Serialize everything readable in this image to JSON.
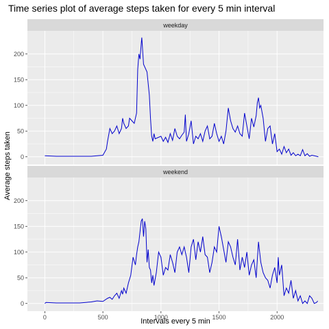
{
  "chart_data": {
    "type": "line",
    "title": "Time series plot of average steps taken for every 5 min interval",
    "xlabel": "Intervals every 5 min",
    "ylabel": "Average steps taken",
    "xlim": [
      -150,
      2400
    ],
    "ylim": [
      -15,
      245
    ],
    "x_ticks": [
      0,
      500,
      1000,
      1500,
      2000
    ],
    "y_ticks": [
      0,
      50,
      100,
      150,
      200
    ],
    "grid": true,
    "line_color": "#0000cc",
    "panel_background": "#ebebeb",
    "strip_background": "#d9d9d9",
    "panels": [
      {
        "label": "weekday",
        "x": [
          0,
          100,
          200,
          300,
          400,
          500,
          530,
          540,
          560,
          580,
          600,
          620,
          640,
          660,
          670,
          680,
          700,
          720,
          730,
          750,
          770,
          790,
          800,
          810,
          820,
          830,
          835,
          840,
          850,
          860,
          870,
          880,
          900,
          910,
          920,
          930,
          940,
          950,
          1000,
          1020,
          1040,
          1060,
          1080,
          1100,
          1120,
          1140,
          1160,
          1180,
          1200,
          1210,
          1220,
          1240,
          1260,
          1280,
          1300,
          1320,
          1340,
          1360,
          1380,
          1400,
          1420,
          1440,
          1460,
          1480,
          1500,
          1520,
          1540,
          1560,
          1580,
          1600,
          1620,
          1640,
          1660,
          1680,
          1700,
          1720,
          1740,
          1760,
          1780,
          1800,
          1820,
          1830,
          1840,
          1850,
          1860,
          1880,
          1900,
          1920,
          1940,
          1960,
          1980,
          2000,
          2020,
          2040,
          2060,
          2080,
          2100,
          2120,
          2140,
          2160,
          2180,
          2200,
          2220,
          2240,
          2260,
          2280,
          2300,
          2320,
          2340,
          2355
        ],
        "values": [
          2,
          1,
          1,
          1,
          1,
          3,
          15,
          30,
          55,
          45,
          50,
          60,
          45,
          55,
          75,
          65,
          55,
          60,
          75,
          70,
          65,
          85,
          170,
          200,
          190,
          220,
          232,
          215,
          180,
          175,
          170,
          165,
          120,
          75,
          40,
          30,
          45,
          35,
          40,
          30,
          38,
          28,
          45,
          32,
          55,
          40,
          35,
          42,
          48,
          82,
          30,
          45,
          70,
          25,
          40,
          35,
          45,
          30,
          50,
          60,
          35,
          40,
          65,
          45,
          30,
          40,
          25,
          50,
          95,
          70,
          55,
          48,
          60,
          45,
          40,
          85,
          60,
          35,
          75,
          58,
          80,
          105,
          115,
          95,
          100,
          75,
          30,
          55,
          60,
          25,
          45,
          10,
          15,
          5,
          20,
          8,
          15,
          3,
          8,
          2,
          5,
          2,
          14,
          2,
          6,
          1,
          3,
          2,
          1,
          0
        ]
      },
      {
        "label": "weekend",
        "x": [
          0,
          10,
          100,
          200,
          300,
          400,
          450,
          500,
          540,
          560,
          580,
          600,
          620,
          640,
          660,
          670,
          680,
          700,
          720,
          740,
          760,
          780,
          790,
          800,
          810,
          820,
          830,
          840,
          850,
          860,
          870,
          880,
          890,
          900,
          910,
          920,
          930,
          940,
          960,
          980,
          1000,
          1020,
          1040,
          1060,
          1080,
          1100,
          1120,
          1140,
          1160,
          1180,
          1200,
          1220,
          1240,
          1260,
          1280,
          1300,
          1320,
          1340,
          1360,
          1380,
          1400,
          1420,
          1440,
          1460,
          1480,
          1500,
          1520,
          1540,
          1560,
          1580,
          1600,
          1620,
          1640,
          1660,
          1680,
          1700,
          1720,
          1740,
          1760,
          1780,
          1800,
          1820,
          1840,
          1860,
          1880,
          1900,
          1920,
          1940,
          1960,
          1980,
          2000,
          2010,
          2020,
          2040,
          2060,
          2080,
          2100,
          2120,
          2140,
          2160,
          2180,
          2200,
          2220,
          2240,
          2260,
          2280,
          2300,
          2320,
          2340,
          2350
        ],
        "values": [
          0,
          2,
          1,
          1,
          1,
          3,
          5,
          4,
          10,
          12,
          8,
          15,
          20,
          10,
          25,
          18,
          30,
          20,
          40,
          55,
          90,
          75,
          95,
          110,
          120,
          140,
          160,
          165,
          130,
          160,
          145,
          80,
          105,
          70,
          65,
          40,
          55,
          35,
          60,
          100,
          90,
          55,
          70,
          65,
          95,
          80,
          60,
          100,
          110,
          95,
          110,
          90,
          60,
          110,
          125,
          85,
          120,
          100,
          130,
          95,
          90,
          60,
          80,
          110,
          100,
          150,
          130,
          105,
          80,
          120,
          110,
          90,
          75,
          125,
          65,
          90,
          70,
          100,
          55,
          75,
          85,
          50,
          120,
          80,
          60,
          50,
          45,
          30,
          55,
          70,
          40,
          90,
          55,
          75,
          15,
          30,
          20,
          45,
          10,
          25,
          5,
          15,
          0,
          5,
          0,
          15,
          10,
          0,
          2,
          5
        ]
      }
    ]
  }
}
